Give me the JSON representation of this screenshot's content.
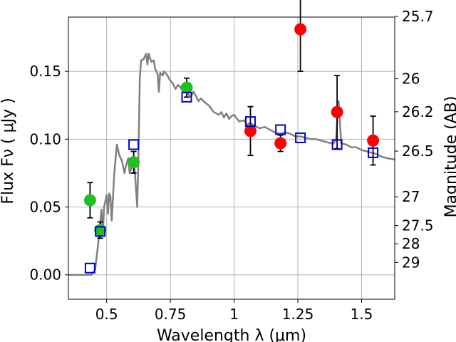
{
  "chart_data": {
    "type": "scatter",
    "xlabel": "Wavelength  λ (μm)",
    "ylabel": "Flux  Fν  ( μJy )",
    "y2label": "Magnitude (AB)",
    "xlim": [
      0.35,
      1.63
    ],
    "ylim": [
      -0.018,
      0.19
    ],
    "grid": true,
    "x_ticks": [
      {
        "value": 0.5,
        "label": "0.5"
      },
      {
        "value": 0.75,
        "label": "0.75"
      },
      {
        "value": 1.0,
        "label": "1"
      },
      {
        "value": 1.25,
        "label": "1.25"
      },
      {
        "value": 1.5,
        "label": "1.5"
      }
    ],
    "y_ticks": [
      {
        "value": 0.0,
        "label": "0.00"
      },
      {
        "value": 0.05,
        "label": "0.05"
      },
      {
        "value": 0.1,
        "label": "0.10"
      },
      {
        "value": 0.15,
        "label": "0.15"
      }
    ],
    "y2_ticks": [
      {
        "value": 25.7,
        "label": "25.7"
      },
      {
        "value": 26.0,
        "label": "26"
      },
      {
        "value": 26.2,
        "label": "26.2"
      },
      {
        "value": 26.5,
        "label": "26.5"
      },
      {
        "value": 27.0,
        "label": "27"
      },
      {
        "value": 27.5,
        "label": "27.5"
      },
      {
        "value": 28.0,
        "label": "28"
      },
      {
        "value": 29.0,
        "label": "29"
      }
    ],
    "colors": {
      "model": "#808080",
      "green": "#1fbf1f",
      "red": "#ff0000",
      "square": "#0000cc",
      "errorbar": "#000000",
      "grid": "#b0b0b0"
    },
    "series": [
      {
        "type": "line",
        "values": [
          [
            0.35,
            0.0
          ],
          [
            0.44,
            0.0
          ],
          [
            0.455,
            0.004
          ],
          [
            0.465,
            0.02
          ],
          [
            0.475,
            0.038
          ],
          [
            0.48,
            0.048
          ],
          [
            0.485,
            0.03
          ],
          [
            0.49,
            0.05
          ],
          [
            0.5,
            0.059
          ],
          [
            0.505,
            0.045
          ],
          [
            0.51,
            0.06
          ],
          [
            0.515,
            0.058
          ],
          [
            0.52,
            0.04
          ],
          [
            0.53,
            0.075
          ],
          [
            0.54,
            0.096
          ],
          [
            0.55,
            0.088
          ],
          [
            0.56,
            0.084
          ],
          [
            0.57,
            0.075
          ],
          [
            0.575,
            0.08
          ],
          [
            0.585,
            0.086
          ],
          [
            0.59,
            0.075
          ],
          [
            0.6,
            0.08
          ],
          [
            0.605,
            0.085
          ],
          [
            0.61,
            0.078
          ],
          [
            0.62,
            0.05
          ],
          [
            0.625,
            0.09
          ],
          [
            0.63,
            0.145
          ],
          [
            0.635,
            0.158
          ],
          [
            0.645,
            0.159
          ],
          [
            0.655,
            0.163
          ],
          [
            0.66,
            0.155
          ],
          [
            0.665,
            0.163
          ],
          [
            0.675,
            0.157
          ],
          [
            0.685,
            0.158
          ],
          [
            0.69,
            0.152
          ],
          [
            0.7,
            0.148
          ],
          [
            0.705,
            0.135
          ],
          [
            0.71,
            0.149
          ],
          [
            0.72,
            0.147
          ],
          [
            0.725,
            0.15
          ],
          [
            0.735,
            0.148
          ],
          [
            0.75,
            0.143
          ],
          [
            0.76,
            0.141
          ],
          [
            0.77,
            0.137
          ],
          [
            0.78,
            0.14
          ],
          [
            0.79,
            0.138
          ],
          [
            0.8,
            0.135
          ],
          [
            0.81,
            0.136
          ],
          [
            0.82,
            0.133
          ],
          [
            0.83,
            0.131
          ],
          [
            0.84,
            0.135
          ],
          [
            0.85,
            0.132
          ],
          [
            0.86,
            0.128
          ],
          [
            0.87,
            0.13
          ],
          [
            0.88,
            0.128
          ],
          [
            0.9,
            0.125
          ],
          [
            0.92,
            0.12
          ],
          [
            0.94,
            0.118
          ],
          [
            0.95,
            0.12
          ],
          [
            0.96,
            0.116
          ],
          [
            0.97,
            0.119
          ],
          [
            0.98,
            0.115
          ],
          [
            0.99,
            0.117
          ],
          [
            1.0,
            0.118
          ],
          [
            1.02,
            0.113
          ],
          [
            1.04,
            0.114
          ],
          [
            1.05,
            0.11
          ],
          [
            1.06,
            0.112
          ],
          [
            1.08,
            0.11
          ],
          [
            1.1,
            0.108
          ],
          [
            1.12,
            0.109
          ],
          [
            1.14,
            0.107
          ],
          [
            1.16,
            0.105
          ],
          [
            1.18,
            0.104
          ],
          [
            1.2,
            0.105
          ],
          [
            1.22,
            0.104
          ],
          [
            1.24,
            0.102
          ],
          [
            1.26,
            0.102
          ],
          [
            1.28,
            0.101
          ],
          [
            1.3,
            0.1
          ],
          [
            1.32,
            0.1
          ],
          [
            1.34,
            0.099
          ],
          [
            1.36,
            0.098
          ],
          [
            1.38,
            0.097
          ],
          [
            1.39,
            0.097
          ],
          [
            1.4,
            0.1
          ],
          [
            1.405,
            0.117
          ],
          [
            1.41,
            0.128
          ],
          [
            1.415,
            0.112
          ],
          [
            1.42,
            0.097
          ],
          [
            1.44,
            0.096
          ],
          [
            1.46,
            0.094
          ],
          [
            1.48,
            0.094
          ],
          [
            1.5,
            0.092
          ],
          [
            1.52,
            0.091
          ],
          [
            1.54,
            0.09
          ],
          [
            1.56,
            0.089
          ],
          [
            1.58,
            0.087
          ],
          [
            1.6,
            0.086
          ],
          [
            1.63,
            0.085
          ]
        ]
      },
      {
        "type": "errorbar",
        "marker": "green-circle",
        "points": [
          {
            "x": 0.435,
            "y": 0.055,
            "err": 0.013
          },
          {
            "x": 0.475,
            "y": 0.033,
            "err": 0.006
          },
          {
            "x": 0.606,
            "y": 0.083,
            "err": 0.008
          },
          {
            "x": 0.814,
            "y": 0.138,
            "err": 0.007
          }
        ]
      },
      {
        "type": "errorbar",
        "marker": "red-circle",
        "points": [
          {
            "x": 1.064,
            "y": 0.106,
            "err": 0.018
          },
          {
            "x": 1.182,
            "y": 0.097,
            "err": 0.006
          },
          {
            "x": 1.26,
            "y": 0.181,
            "err": 0.031
          },
          {
            "x": 1.404,
            "y": 0.12,
            "err": 0.027
          },
          {
            "x": 1.545,
            "y": 0.099,
            "err": 0.018
          }
        ]
      },
      {
        "type": "scatter",
        "marker": "blue-square",
        "points": [
          {
            "x": 0.435,
            "y": 0.005
          },
          {
            "x": 0.475,
            "y": 0.032
          },
          {
            "x": 0.606,
            "y": 0.096
          },
          {
            "x": 0.814,
            "y": 0.131
          },
          {
            "x": 1.064,
            "y": 0.113
          },
          {
            "x": 1.182,
            "y": 0.107
          },
          {
            "x": 1.26,
            "y": 0.101
          },
          {
            "x": 1.404,
            "y": 0.096
          },
          {
            "x": 1.545,
            "y": 0.09
          }
        ]
      }
    ]
  }
}
